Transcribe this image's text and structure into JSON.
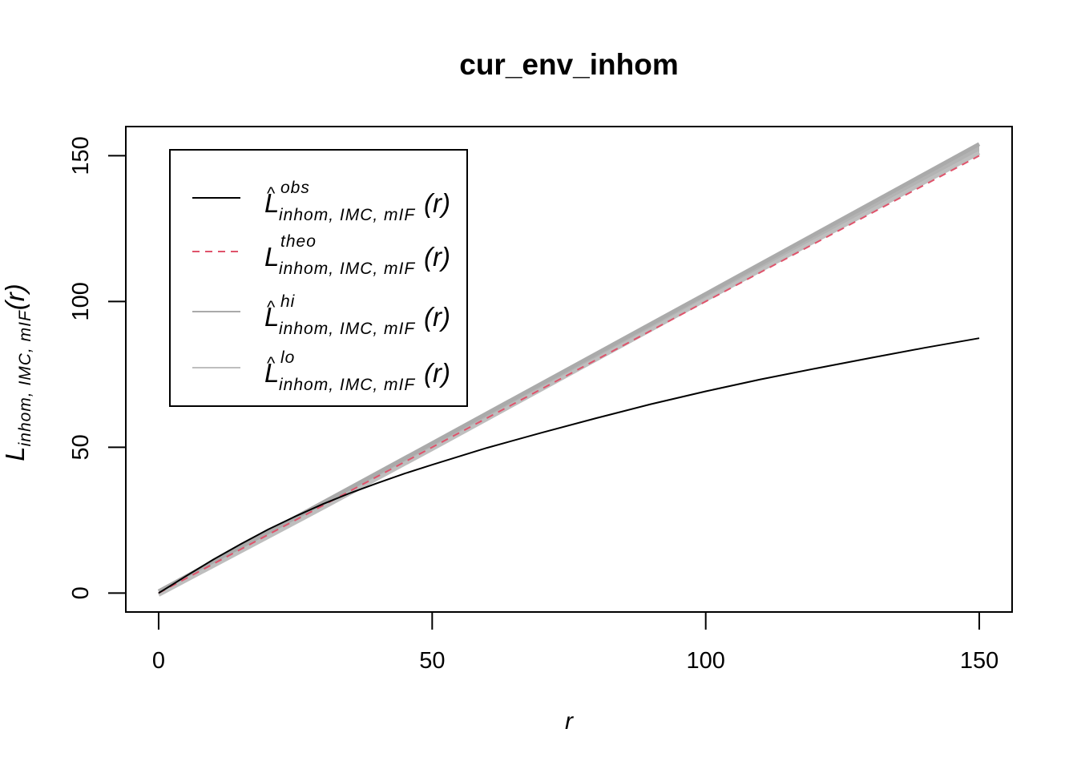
{
  "chart_data": {
    "type": "line",
    "title": "cur_env_inhom",
    "xlabel": "r",
    "ylabel": {
      "main": "L",
      "sub": "inhom, IMC, mIF",
      "suffix": "(r)"
    },
    "xlim": [
      -6,
      156
    ],
    "ylim": [
      -6.5,
      160
    ],
    "x_ticks": [
      0,
      50,
      100,
      150
    ],
    "y_ticks": [
      0,
      50,
      100,
      150
    ],
    "legend_position": "top-left",
    "series": [
      {
        "name": "obs",
        "legend": {
          "main": "L",
          "hat": "^",
          "sup": "obs",
          "sub": "inhom, IMC, mIF",
          "suffix": "(r)"
        },
        "color": "#000000",
        "style": "solid",
        "x": [
          0,
          2,
          5,
          10,
          15,
          20,
          25,
          30,
          35,
          40,
          45,
          50,
          60,
          70,
          80,
          90,
          100,
          110,
          120,
          130,
          140,
          150
        ],
        "y": [
          0,
          2.3,
          5.8,
          11.5,
          16.8,
          21.8,
          26.3,
          30.5,
          34.3,
          37.7,
          41,
          44,
          49.8,
          55,
          60,
          64.8,
          69.2,
          73.3,
          77,
          80.6,
          84.1,
          87.4
        ]
      },
      {
        "name": "theo",
        "legend": {
          "main": "L",
          "hat": "",
          "sup": "theo",
          "sub": "inhom, IMC, mIF",
          "suffix": "(r)"
        },
        "color": "#df536b",
        "style": "dashed",
        "x": [
          0,
          150
        ],
        "y": [
          0,
          150
        ]
      },
      {
        "name": "hi",
        "legend": {
          "main": "L",
          "hat": "^",
          "sup": "hi",
          "sub": "inhom, IMC, mIF",
          "suffix": "(r)"
        },
        "color": "#aaaaaa",
        "style": "solid",
        "x": [
          0,
          30,
          50,
          100,
          150
        ],
        "y": [
          0.6,
          31,
          51.4,
          102.6,
          154
        ]
      },
      {
        "name": "lo",
        "legend": {
          "main": "L",
          "hat": "^",
          "sup": "lo",
          "sub": "inhom, IMC, mIF",
          "suffix": "(r)"
        },
        "color": "#bebebe",
        "style": "solid",
        "x": [
          0,
          30,
          50,
          100,
          150
        ],
        "y": [
          -0.6,
          29.2,
          49.4,
          100.6,
          151
        ]
      }
    ]
  }
}
